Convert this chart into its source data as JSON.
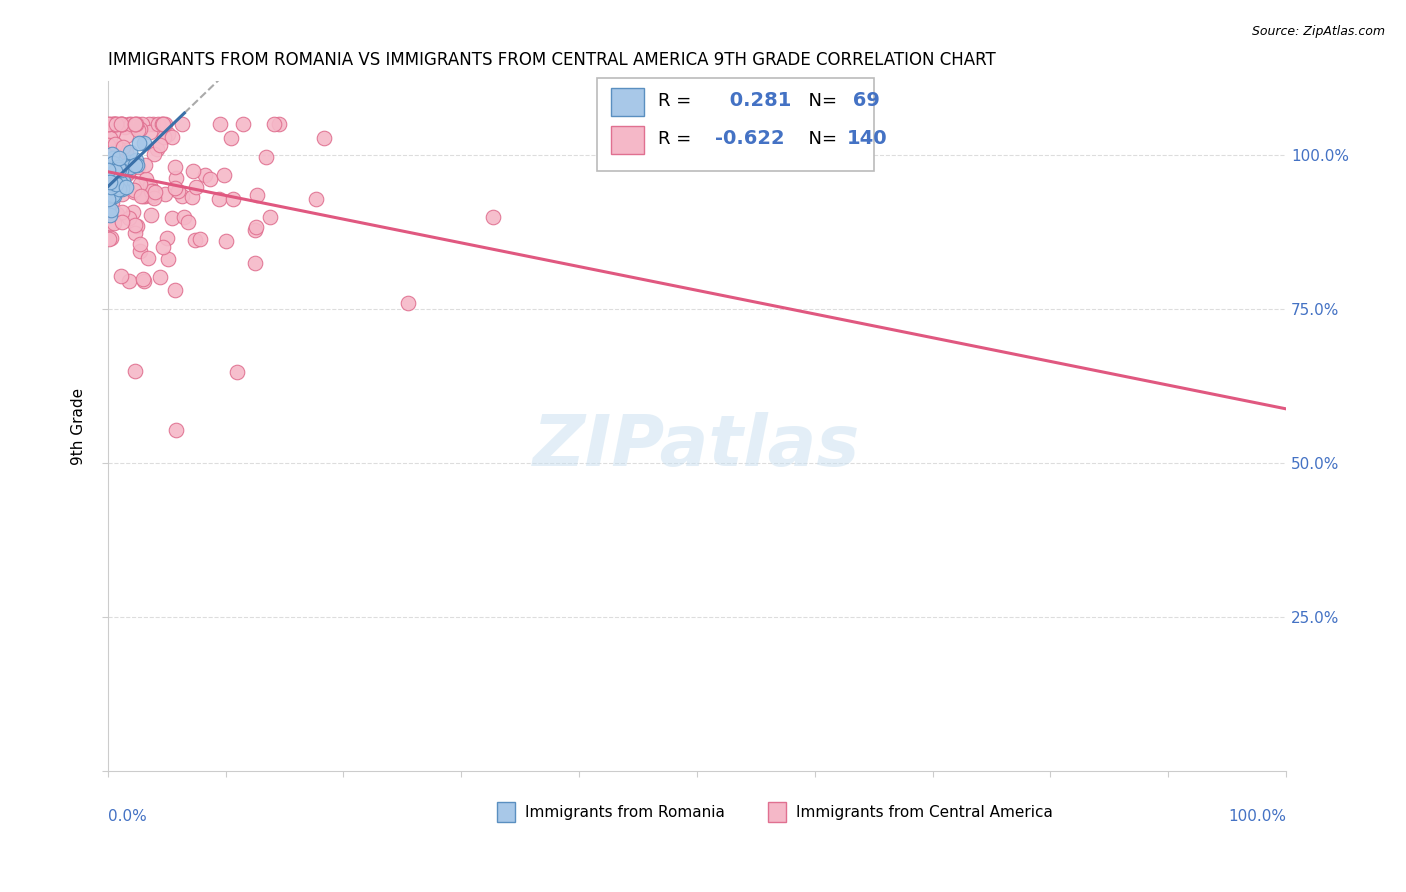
{
  "title": "IMMIGRANTS FROM ROMANIA VS IMMIGRANTS FROM CENTRAL AMERICA 9TH GRADE CORRELATION CHART",
  "source": "Source: ZipAtlas.com",
  "ylabel": "9th Grade",
  "romania_R": 0.281,
  "romania_N": 69,
  "central_R": -0.622,
  "central_N": 140,
  "romania_color": "#a8c8e8",
  "romania_edge_color": "#5a8fc0",
  "romania_line_color": "#3a70a8",
  "central_color": "#f5b8c8",
  "central_edge_color": "#e07090",
  "central_line_color": "#e05880",
  "watermark": "ZIPatlas",
  "watermark_color": "#c8dff0",
  "legend_blue": "#4472c4",
  "grid_color": "#dddddd",
  "ytick_color": "#4472c4",
  "xtick_color": "#4472c4"
}
